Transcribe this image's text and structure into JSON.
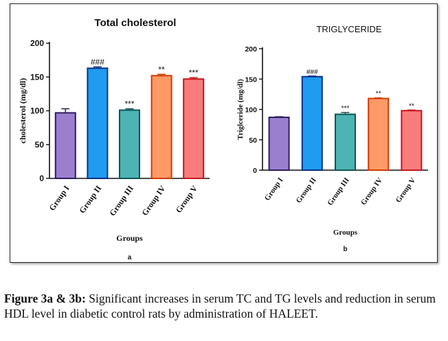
{
  "chart_data": [
    {
      "type": "bar",
      "title": "Total cholesterol",
      "xlabel": "Groups",
      "ylabel": "cholesterol (mg/dl)",
      "panel_label": "a",
      "categories": [
        "Group I",
        "Group II",
        "Group III",
        "Group IV",
        "Group V"
      ],
      "values": [
        97,
        163,
        101,
        152,
        147
      ],
      "errors": [
        6,
        2,
        2,
        2,
        2
      ],
      "annotations": [
        "",
        "###",
        "***",
        "**",
        "***"
      ],
      "colors": [
        "#9b7fcf",
        "#1f9bf0",
        "#4db3b3",
        "#ff9a66",
        "#f87c7c"
      ],
      "edge_colors": [
        "#2c1d5e",
        "#0a2f8a",
        "#0f5454",
        "#d13a00",
        "#c7141c"
      ],
      "ylim": [
        0,
        200
      ],
      "yticks": [
        0,
        50,
        100,
        150,
        200
      ],
      "grid": false
    },
    {
      "type": "bar",
      "title": "TRIGLYCERIDE",
      "xlabel": "Groups",
      "ylabel": "Triglceride (mg/dl)",
      "panel_label": "b",
      "categories": [
        "Group I",
        "Group II",
        "Group III",
        "Group IV",
        "Group V"
      ],
      "values": [
        87,
        154,
        92,
        118,
        98
      ],
      "errors": [
        1,
        1,
        3,
        1,
        1
      ],
      "annotations": [
        "",
        "###",
        "***",
        "**",
        "**"
      ],
      "colors": [
        "#9b7fcf",
        "#1f9bf0",
        "#4db3b3",
        "#ff9a66",
        "#f87c7c"
      ],
      "edge_colors": [
        "#2c1d5e",
        "#0a2f8a",
        "#0f5454",
        "#d13a00",
        "#c7141c"
      ],
      "ylim": [
        0,
        200
      ],
      "yticks": [
        0,
        50,
        100,
        150,
        200
      ],
      "grid": false
    }
  ],
  "caption": {
    "label": "Figure 3a & 3b:",
    "text": " Significant increases in serum TC and TG levels and reduction in serum HDL level in diabetic control rats by administration of HALEET."
  }
}
